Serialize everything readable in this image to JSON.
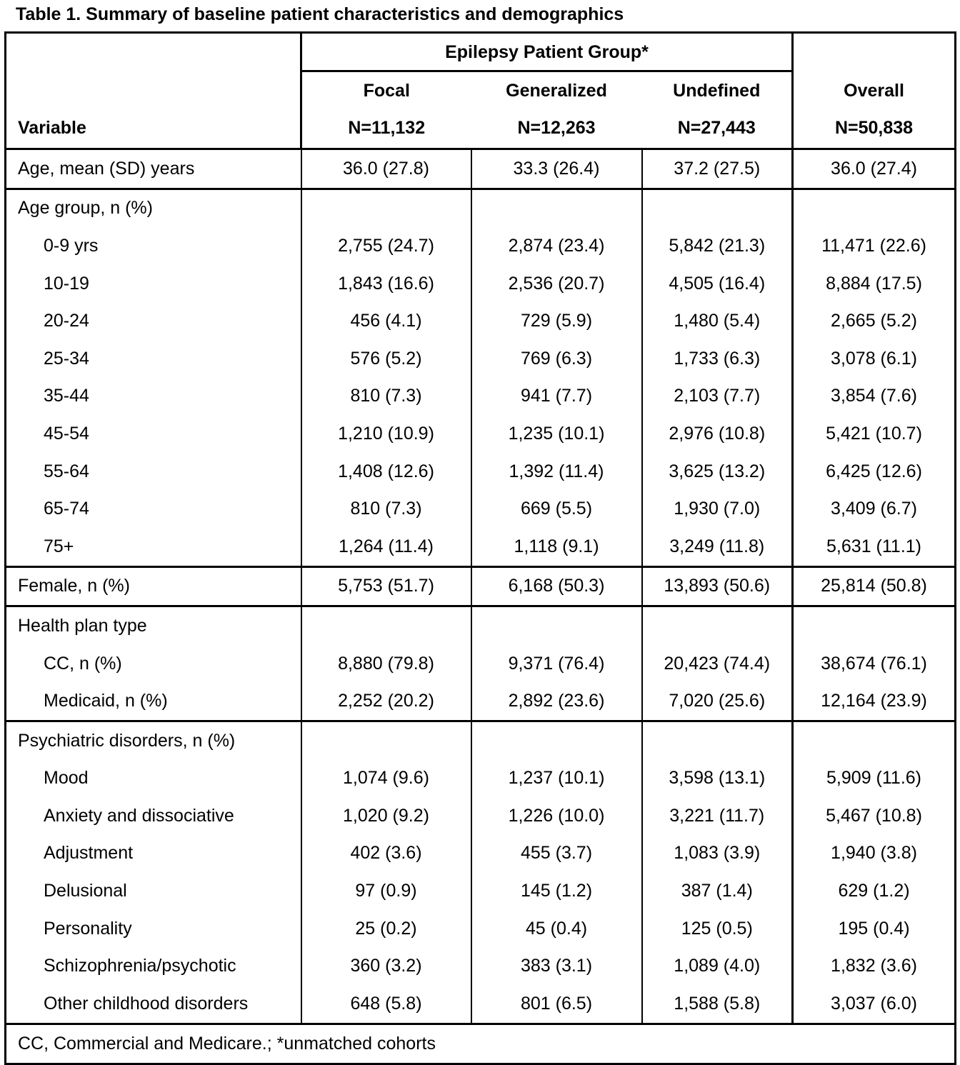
{
  "title": "Table 1. Summary of baseline patient characteristics and demographics",
  "table": {
    "variable_header": "Variable",
    "group_header": "Epilepsy Patient Group*",
    "columns": [
      {
        "name": "Focal",
        "n": "N=11,132"
      },
      {
        "name": "Generalized",
        "n": "N=12,263"
      },
      {
        "name": "Undefined",
        "n": "N=27,443"
      },
      {
        "name": "Overall",
        "n": "N=50,838"
      }
    ],
    "sections": [
      {
        "rows": [
          {
            "label": "Age, mean (SD) years",
            "values": [
              "36.0 (27.8)",
              "33.3 (26.4)",
              "37.2 (27.5)",
              "36.0 (27.4)"
            ]
          }
        ]
      },
      {
        "heading": "Age group, n (%)",
        "rows": [
          {
            "label": "0-9 yrs",
            "values": [
              "2,755 (24.7)",
              "2,874 (23.4)",
              "5,842 (21.3)",
              "11,471 (22.6)"
            ]
          },
          {
            "label": "10-19",
            "values": [
              "1,843 (16.6)",
              "2,536 (20.7)",
              "4,505 (16.4)",
              "8,884 (17.5)"
            ]
          },
          {
            "label": "20-24",
            "values": [
              "456 (4.1)",
              "729 (5.9)",
              "1,480 (5.4)",
              "2,665 (5.2)"
            ]
          },
          {
            "label": "25-34",
            "values": [
              "576 (5.2)",
              "769 (6.3)",
              "1,733 (6.3)",
              "3,078 (6.1)"
            ]
          },
          {
            "label": "35-44",
            "values": [
              "810 (7.3)",
              "941 (7.7)",
              "2,103 (7.7)",
              "3,854 (7.6)"
            ]
          },
          {
            "label": "45-54",
            "values": [
              "1,210 (10.9)",
              "1,235 (10.1)",
              "2,976 (10.8)",
              "5,421 (10.7)"
            ]
          },
          {
            "label": "55-64",
            "values": [
              "1,408 (12.6)",
              "1,392 (11.4)",
              "3,625 (13.2)",
              "6,425 (12.6)"
            ]
          },
          {
            "label": "65-74",
            "values": [
              "810 (7.3)",
              "669 (5.5)",
              "1,930 (7.0)",
              "3,409 (6.7)"
            ]
          },
          {
            "label": "75+",
            "values": [
              "1,264 (11.4)",
              "1,118 (9.1)",
              "3,249 (11.8)",
              "5,631 (11.1)"
            ]
          }
        ]
      },
      {
        "rows": [
          {
            "label": "Female, n (%)",
            "values": [
              "5,753 (51.7)",
              "6,168 (50.3)",
              "13,893 (50.6)",
              "25,814 (50.8)"
            ]
          }
        ]
      },
      {
        "heading": "Health plan type",
        "rows": [
          {
            "label": "CC, n (%)",
            "values": [
              "8,880 (79.8)",
              "9,371 (76.4)",
              "20,423 (74.4)",
              "38,674 (76.1)"
            ]
          },
          {
            "label": "Medicaid, n (%)",
            "values": [
              "2,252 (20.2)",
              "2,892 (23.6)",
              "7,020 (25.6)",
              "12,164 (23.9)"
            ]
          }
        ]
      },
      {
        "heading": "Psychiatric disorders, n (%)",
        "rows": [
          {
            "label": "Mood",
            "values": [
              "1,074 (9.6)",
              "1,237 (10.1)",
              "3,598 (13.1)",
              "5,909 (11.6)"
            ]
          },
          {
            "label": "Anxiety and dissociative",
            "values": [
              "1,020 (9.2)",
              "1,226 (10.0)",
              "3,221 (11.7)",
              "5,467 (10.8)"
            ]
          },
          {
            "label": "Adjustment",
            "values": [
              "402 (3.6)",
              "455 (3.7)",
              "1,083 (3.9)",
              "1,940 (3.8)"
            ]
          },
          {
            "label": "Delusional",
            "values": [
              "97 (0.9)",
              "145 (1.2)",
              "387 (1.4)",
              "629 (1.2)"
            ]
          },
          {
            "label": "Personality",
            "values": [
              "25 (0.2)",
              "45 (0.4)",
              "125 (0.5)",
              "195 (0.4)"
            ]
          },
          {
            "label": "Schizophrenia/psychotic",
            "values": [
              "360 (3.2)",
              "383 (3.1)",
              "1,089 (4.0)",
              "1,832 (3.6)"
            ]
          },
          {
            "label": "Other childhood disorders",
            "values": [
              "648 (5.8)",
              "801 (6.5)",
              "1,588 (5.8)",
              "3,037 (6.0)"
            ]
          }
        ]
      }
    ],
    "footnote": "CC, Commercial and Medicare.; *unmatched cohorts"
  }
}
